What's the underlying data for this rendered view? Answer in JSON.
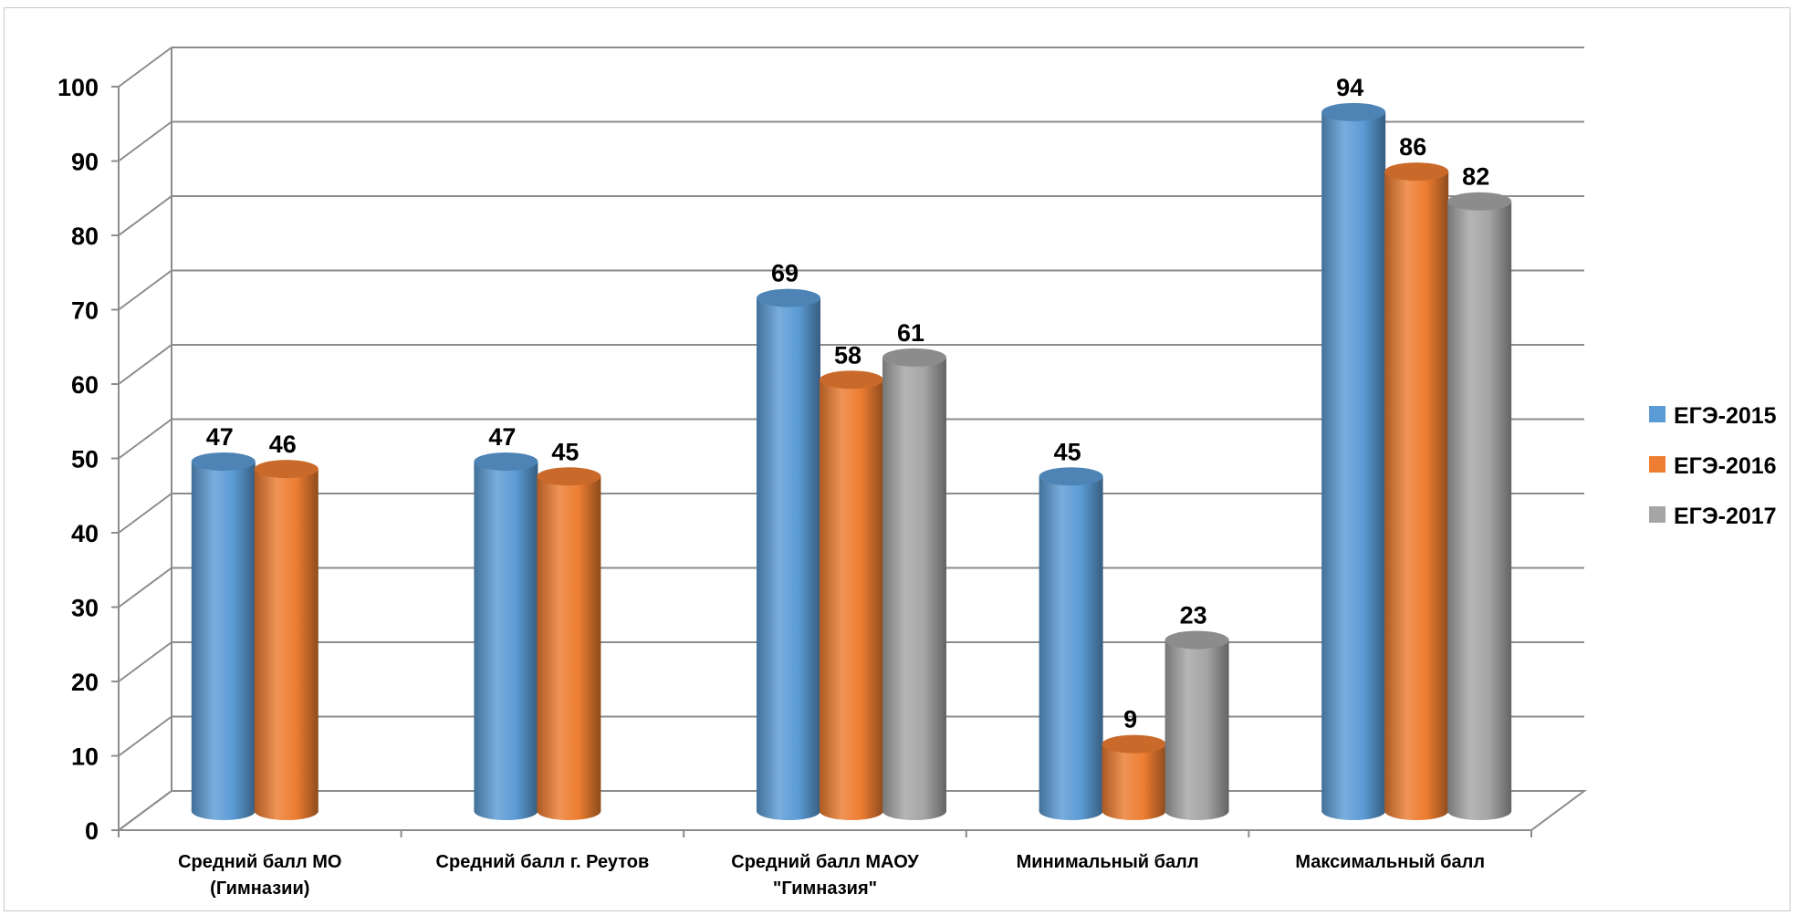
{
  "chart_data": {
    "type": "bar",
    "style": "3d-cylinder",
    "categories": [
      [
        "Средний балл МО",
        "(Гимназии)"
      ],
      [
        "Средний балл г. Реутов"
      ],
      [
        "Средний балл МАОУ",
        "\"Гимназия\""
      ],
      [
        "Минимальный балл"
      ],
      [
        "Максимальный балл"
      ]
    ],
    "series": [
      {
        "name": "ЕГЭ-2015",
        "color": "#5B9BD5",
        "values": [
          47,
          47,
          69,
          45,
          94
        ]
      },
      {
        "name": "ЕГЭ-2016",
        "color": "#ED7D31",
        "values": [
          46,
          45,
          58,
          9,
          86
        ]
      },
      {
        "name": "ЕГЭ-2017",
        "color": "#A5A5A5",
        "values": [
          null,
          null,
          61,
          23,
          82
        ]
      }
    ],
    "ylim": [
      0,
      100
    ],
    "yticks": [
      0,
      10,
      20,
      30,
      40,
      50,
      60,
      70,
      80,
      90,
      100
    ],
    "grid": true,
    "legend": "right",
    "title": "",
    "xlabel": "",
    "ylabel": ""
  }
}
